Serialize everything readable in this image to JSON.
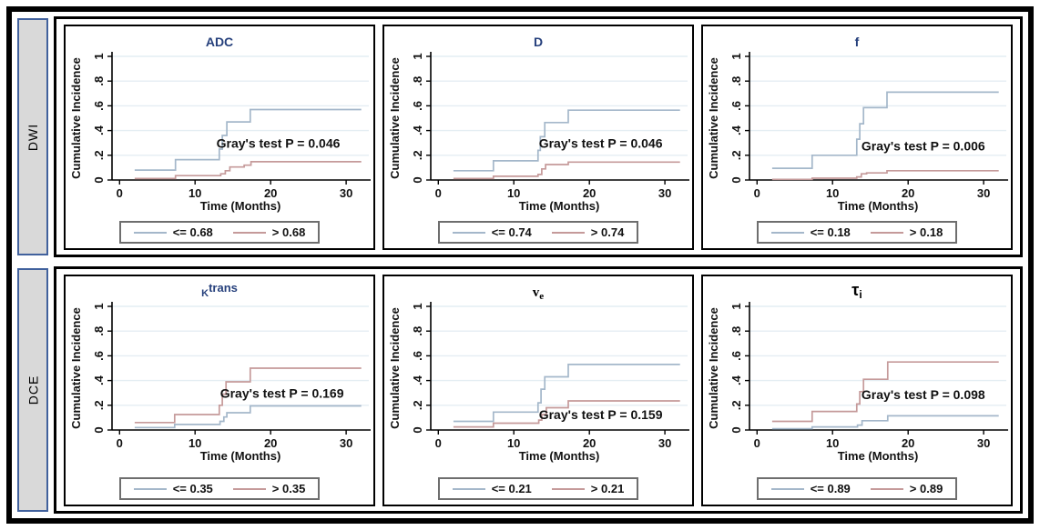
{
  "row_labels": [
    {
      "label": "DWI"
    },
    {
      "label": "DCE"
    }
  ],
  "axis": {
    "ylabel": "Cumulative Incidence",
    "xlabel": "Time (Months)",
    "yticks": [
      "0",
      ".2",
      ".4",
      ".6",
      ".8",
      "1"
    ],
    "xticks": [
      "0",
      "10",
      "20",
      "30"
    ]
  },
  "colors": {
    "series_blue": "#a4b7ca",
    "series_red": "#c59a9a",
    "grid": "#e4edf3",
    "axis": "#000000",
    "title_navy": "#26407c",
    "label_box_fill": "#d9d9d9",
    "label_box_border": "#41619d",
    "legend_border": "#6e6e6e"
  },
  "chart_data": [
    {
      "type": "line",
      "group": "DWI",
      "title": {
        "base": "ADC",
        "sup": "",
        "sub": "",
        "color": "navy"
      },
      "xlabel": "Time (Months)",
      "ylabel": "Cumulative Incidence",
      "xlim": [
        -1,
        33
      ],
      "ylim": [
        0,
        1
      ],
      "xticks": [
        0,
        10,
        20,
        30
      ],
      "yticks": [
        0,
        0.2,
        0.4,
        0.6,
        0.8,
        1
      ],
      "p_value": 0.046,
      "annotation": {
        "text": "Gray's test P = 0.046",
        "x": 21,
        "y": 0.26
      },
      "legend": [
        {
          "label": "<= 0.68",
          "color": "blue"
        },
        {
          "label": "> 0.68",
          "color": "red"
        }
      ],
      "series": [
        {
          "name": "<= 0.68",
          "color": "blue",
          "steps": [
            [
              2,
              0.08
            ],
            [
              7.4,
              0.165
            ],
            [
              13.2,
              0.25
            ],
            [
              13.6,
              0.36
            ],
            [
              14.2,
              0.47
            ],
            [
              17.3,
              0.57
            ],
            [
              32,
              0.57
            ]
          ]
        },
        {
          "name": "> 0.68",
          "color": "red",
          "steps": [
            [
              2,
              0.012
            ],
            [
              7.4,
              0.035
            ],
            [
              13.4,
              0.05
            ],
            [
              14,
              0.075
            ],
            [
              14.6,
              0.105
            ],
            [
              16.5,
              0.12
            ],
            [
              17.4,
              0.148
            ],
            [
              32,
              0.148
            ]
          ]
        }
      ]
    },
    {
      "type": "line",
      "group": "DWI",
      "title": {
        "base": "D",
        "sup": "",
        "sub": "",
        "color": "navy"
      },
      "xlabel": "Time (Months)",
      "ylabel": "Cumulative Incidence",
      "xlim": [
        -1,
        33
      ],
      "ylim": [
        0,
        1
      ],
      "xticks": [
        0,
        10,
        20,
        30
      ],
      "yticks": [
        0,
        0.2,
        0.4,
        0.6,
        0.8,
        1
      ],
      "p_value": 0.046,
      "annotation": {
        "text": "Gray's test P = 0.046",
        "x": 21.5,
        "y": 0.26
      },
      "legend": [
        {
          "label": "<= 0.74",
          "color": "blue"
        },
        {
          "label": "> 0.74",
          "color": "red"
        }
      ],
      "series": [
        {
          "name": "<= 0.74",
          "color": "blue",
          "steps": [
            [
              2,
              0.075
            ],
            [
              7.3,
              0.155
            ],
            [
              13.2,
              0.24
            ],
            [
              13.5,
              0.35
            ],
            [
              14.1,
              0.465
            ],
            [
              17.2,
              0.565
            ],
            [
              32,
              0.565
            ]
          ]
        },
        {
          "name": "> 0.74",
          "color": "red",
          "steps": [
            [
              2,
              0.012
            ],
            [
              7.3,
              0.03
            ],
            [
              13.2,
              0.045
            ],
            [
              13.7,
              0.09
            ],
            [
              14.2,
              0.125
            ],
            [
              17.2,
              0.145
            ],
            [
              32,
              0.145
            ]
          ]
        }
      ]
    },
    {
      "type": "line",
      "group": "DWI",
      "title": {
        "base": "f",
        "sup": "",
        "sub": "",
        "color": "navy"
      },
      "xlabel": "Time (Months)",
      "ylabel": "Cumulative Incidence",
      "xlim": [
        -1,
        33
      ],
      "ylim": [
        0,
        1
      ],
      "xticks": [
        0,
        10,
        20,
        30
      ],
      "yticks": [
        0,
        0.2,
        0.4,
        0.6,
        0.8,
        1
      ],
      "p_value": 0.006,
      "annotation": {
        "text": "Gray's test P = 0.006",
        "x": 22,
        "y": 0.24
      },
      "legend": [
        {
          "label": "<= 0.18",
          "color": "blue"
        },
        {
          "label": "> 0.18",
          "color": "red"
        }
      ],
      "series": [
        {
          "name": "<= 0.18",
          "color": "blue",
          "steps": [
            [
              2,
              0.095
            ],
            [
              7.3,
              0.2
            ],
            [
              13.2,
              0.33
            ],
            [
              13.6,
              0.455
            ],
            [
              14.1,
              0.585
            ],
            [
              17.2,
              0.71
            ],
            [
              32,
              0.71
            ]
          ]
        },
        {
          "name": "> 0.18",
          "color": "red",
          "steps": [
            [
              2,
              0.005
            ],
            [
              7.3,
              0.015
            ],
            [
              13.2,
              0.025
            ],
            [
              13.8,
              0.05
            ],
            [
              14.5,
              0.057
            ],
            [
              17.2,
              0.075
            ],
            [
              32,
              0.075
            ]
          ]
        }
      ]
    },
    {
      "type": "line",
      "group": "DCE",
      "title": {
        "base": "K",
        "sup": "trans",
        "sub": "",
        "color": "navy"
      },
      "xlabel": "Time (Months)",
      "ylabel": "Cumulative Incidence",
      "xlim": [
        -1,
        33
      ],
      "ylim": [
        0,
        1
      ],
      "xticks": [
        0,
        10,
        20,
        30
      ],
      "yticks": [
        0,
        0.2,
        0.4,
        0.6,
        0.8,
        1
      ],
      "p_value": 0.169,
      "annotation": {
        "text": "Gray's test P = 0.169",
        "x": 21.5,
        "y": 0.26
      },
      "legend": [
        {
          "label": "<= 0.35",
          "color": "blue"
        },
        {
          "label": "> 0.35",
          "color": "red"
        }
      ],
      "series": [
        {
          "name": "<= 0.35",
          "color": "blue",
          "steps": [
            [
              2,
              0.02
            ],
            [
              7.3,
              0.045
            ],
            [
              13.3,
              0.07
            ],
            [
              13.8,
              0.105
            ],
            [
              14.2,
              0.14
            ],
            [
              17.3,
              0.195
            ],
            [
              32,
              0.195
            ]
          ]
        },
        {
          "name": "> 0.35",
          "color": "red",
          "steps": [
            [
              2,
              0.06
            ],
            [
              7.3,
              0.125
            ],
            [
              13.2,
              0.2
            ],
            [
              13.6,
              0.29
            ],
            [
              14.1,
              0.39
            ],
            [
              17.3,
              0.5
            ],
            [
              32,
              0.5
            ]
          ]
        }
      ]
    },
    {
      "type": "line",
      "group": "DCE",
      "title": {
        "base": "v",
        "sup": "",
        "sub": "e",
        "color": "black"
      },
      "xlabel": "Time (Months)",
      "ylabel": "Cumulative Incidence",
      "xlim": [
        -1,
        33
      ],
      "ylim": [
        0,
        1
      ],
      "xticks": [
        0,
        10,
        20,
        30
      ],
      "yticks": [
        0,
        0.2,
        0.4,
        0.6,
        0.8,
        1
      ],
      "p_value": 0.159,
      "annotation": {
        "text": "Gray's test P = 0.159",
        "x": 21.5,
        "y": 0.09
      },
      "legend": [
        {
          "label": "<= 0.21",
          "color": "blue"
        },
        {
          "label": "> 0.21",
          "color": "red"
        }
      ],
      "series": [
        {
          "name": "<= 0.21",
          "color": "blue",
          "steps": [
            [
              2,
              0.07
            ],
            [
              7.3,
              0.145
            ],
            [
              13.2,
              0.22
            ],
            [
              13.6,
              0.33
            ],
            [
              14.1,
              0.43
            ],
            [
              17.2,
              0.53
            ],
            [
              32,
              0.53
            ]
          ]
        },
        {
          "name": "> 0.21",
          "color": "red",
          "steps": [
            [
              2,
              0.025
            ],
            [
              7.3,
              0.055
            ],
            [
              13.3,
              0.08
            ],
            [
              13.7,
              0.125
            ],
            [
              14.3,
              0.18
            ],
            [
              17.2,
              0.235
            ],
            [
              32,
              0.235
            ]
          ]
        }
      ]
    },
    {
      "type": "line",
      "group": "DCE",
      "title": {
        "base": "τ",
        "sup": "",
        "sub": "i",
        "color": "black"
      },
      "xlabel": "Time (Months)",
      "ylabel": "Cumulative Incidence",
      "xlim": [
        -1,
        33
      ],
      "ylim": [
        0,
        1
      ],
      "xticks": [
        0,
        10,
        20,
        30
      ],
      "yticks": [
        0,
        0.2,
        0.4,
        0.6,
        0.8,
        1
      ],
      "p_value": 0.098,
      "annotation": {
        "text": "Gray's test P = 0.098",
        "x": 22,
        "y": 0.25
      },
      "legend": [
        {
          "label": "<= 0.89",
          "color": "blue"
        },
        {
          "label": "> 0.89",
          "color": "red"
        }
      ],
      "series": [
        {
          "name": "<= 0.89",
          "color": "blue",
          "steps": [
            [
              2,
              0.01
            ],
            [
              7.3,
              0.025
            ],
            [
              13.3,
              0.04
            ],
            [
              13.9,
              0.075
            ],
            [
              17.3,
              0.115
            ],
            [
              32,
              0.115
            ]
          ]
        },
        {
          "name": "> 0.89",
          "color": "red",
          "steps": [
            [
              2,
              0.07
            ],
            [
              7.3,
              0.15
            ],
            [
              13.2,
              0.21
            ],
            [
              13.6,
              0.31
            ],
            [
              14.1,
              0.41
            ],
            [
              17.3,
              0.55
            ],
            [
              32,
              0.55
            ]
          ]
        }
      ]
    }
  ]
}
